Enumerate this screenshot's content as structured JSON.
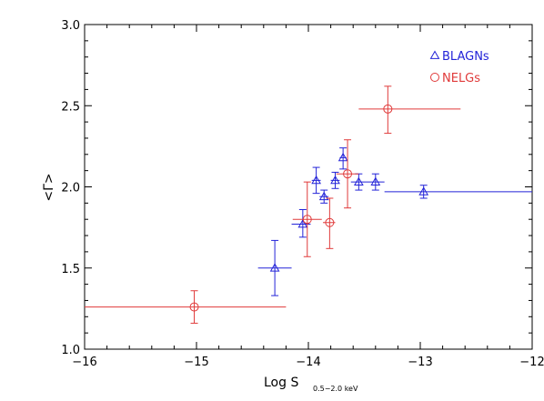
{
  "chart_data": {
    "type": "scatter",
    "title": "",
    "xlabel": "Log S",
    "xlabel_sub": "0.5−2.0 keV",
    "ylabel": "<Γ>",
    "xlim": [
      -16,
      -12
    ],
    "ylim": [
      1.0,
      3.0
    ],
    "x_ticks": [
      -16,
      -15,
      -14,
      -13,
      -12
    ],
    "x_tick_labels": [
      "−16",
      "−15",
      "−14",
      "−13",
      "−12"
    ],
    "y_ticks": [
      1.0,
      1.5,
      2.0,
      2.5,
      3.0
    ],
    "y_tick_labels": [
      "1.0",
      "1.5",
      "2.0",
      "2.5",
      "3.0"
    ],
    "grid": false,
    "legend_position": "top-right",
    "series": [
      {
        "name": "BLAGNs",
        "color": "#2323d8",
        "marker": "triangle",
        "points": [
          {
            "x": -14.3,
            "xlo": -14.45,
            "xhi": -14.15,
            "y": 1.5,
            "ylo": 1.33,
            "yhi": 1.67
          },
          {
            "x": -14.05,
            "xlo": -14.15,
            "xhi": -13.98,
            "y": 1.77,
            "ylo": 1.69,
            "yhi": 1.86
          },
          {
            "x": -13.93,
            "xlo": -13.97,
            "xhi": -13.89,
            "y": 2.04,
            "ylo": 1.96,
            "yhi": 2.12
          },
          {
            "x": -13.86,
            "xlo": -13.9,
            "xhi": -13.82,
            "y": 1.94,
            "ylo": 1.9,
            "yhi": 1.98
          },
          {
            "x": -13.76,
            "xlo": -13.8,
            "xhi": -13.72,
            "y": 2.04,
            "ylo": 1.99,
            "yhi": 2.09
          },
          {
            "x": -13.69,
            "xlo": -13.72,
            "xhi": -13.66,
            "y": 2.18,
            "ylo": 2.11,
            "yhi": 2.24
          },
          {
            "x": -13.55,
            "xlo": -13.62,
            "xhi": -13.48,
            "y": 2.03,
            "ylo": 1.98,
            "yhi": 2.08
          },
          {
            "x": -13.4,
            "xlo": -13.48,
            "xhi": -13.32,
            "y": 2.03,
            "ylo": 1.98,
            "yhi": 2.08
          },
          {
            "x": -12.97,
            "xlo": -13.32,
            "xhi": -12.0,
            "y": 1.97,
            "ylo": 1.93,
            "yhi": 2.01
          }
        ]
      },
      {
        "name": "NELGs",
        "color": "#e03a3a",
        "marker": "circle",
        "points": [
          {
            "x": -15.02,
            "xlo": -16.0,
            "xhi": -14.2,
            "y": 1.26,
            "ylo": 1.16,
            "yhi": 1.36
          },
          {
            "x": -14.01,
            "xlo": -14.14,
            "xhi": -13.88,
            "y": 1.8,
            "ylo": 1.57,
            "yhi": 2.03
          },
          {
            "x": -13.81,
            "xlo": -13.87,
            "xhi": -13.76,
            "y": 1.78,
            "ylo": 1.62,
            "yhi": 1.93
          },
          {
            "x": -13.65,
            "xlo": -13.75,
            "xhi": -13.55,
            "y": 2.08,
            "ylo": 1.87,
            "yhi": 2.29
          },
          {
            "x": -13.29,
            "xlo": -13.55,
            "xhi": -12.64,
            "y": 2.48,
            "ylo": 2.33,
            "yhi": 2.62
          }
        ]
      }
    ]
  }
}
